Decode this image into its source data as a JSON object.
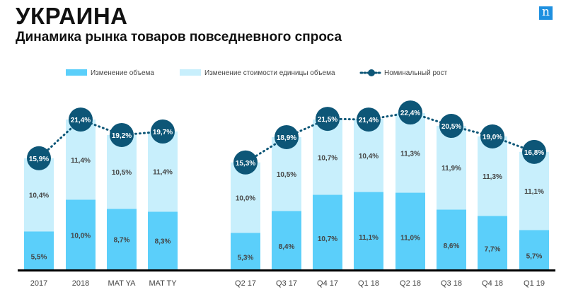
{
  "header": {
    "title": "УКРАИНА",
    "subtitle": "Динамика рынка товаров повседневного спроса",
    "logo_text": "n"
  },
  "chart_data": {
    "type": "bar",
    "stacked": true,
    "categories": [
      "2017",
      "2018",
      "MAT YA",
      "MAT TY",
      "Q2 17",
      "Q3 17",
      "Q4 17",
      "Q1 18",
      "Q2 18",
      "Q3 18",
      "Q4 18",
      "Q1 19"
    ],
    "groups": [
      [
        0,
        1,
        2,
        3
      ],
      [
        4,
        5,
        6,
        7,
        8,
        9,
        10,
        11
      ]
    ],
    "series": [
      {
        "name": "Изменение объема",
        "color": "#5bcffa",
        "values": [
          5.5,
          10.0,
          8.7,
          8.3,
          5.3,
          8.4,
          10.7,
          11.1,
          11.0,
          8.6,
          7.7,
          5.7
        ],
        "labels": [
          "5,5%",
          "10,0%",
          "8,7%",
          "8,3%",
          "5,3%",
          "8,4%",
          "10,7%",
          "11,1%",
          "11,0%",
          "8,6%",
          "7,7%",
          "5,7%"
        ]
      },
      {
        "name": "Изменение стоимости единицы объема",
        "color": "#c8effc",
        "values": [
          10.4,
          11.4,
          10.5,
          11.4,
          10.0,
          10.5,
          10.7,
          10.4,
          11.3,
          11.9,
          11.3,
          11.1
        ],
        "labels": [
          "10,4%",
          "11,4%",
          "10,5%",
          "11,4%",
          "10,0%",
          "10,5%",
          "10,7%",
          "10,4%",
          "11,3%",
          "11,9%",
          "11,3%",
          "11,1%"
        ]
      },
      {
        "name": "Номинальный рост",
        "type": "line",
        "color": "#0d5677",
        "values": [
          15.9,
          21.4,
          19.2,
          19.7,
          15.3,
          18.9,
          21.5,
          21.4,
          22.4,
          20.5,
          19.0,
          16.8
        ],
        "labels": [
          "15,9%",
          "21,4%",
          "19,2%",
          "19,7%",
          "15,3%",
          "18,9%",
          "21,5%",
          "21,4%",
          "22,4%",
          "20,5%",
          "19,0%",
          "16,8%"
        ]
      }
    ],
    "legend": "top",
    "ylim": [
      0,
      23
    ]
  }
}
